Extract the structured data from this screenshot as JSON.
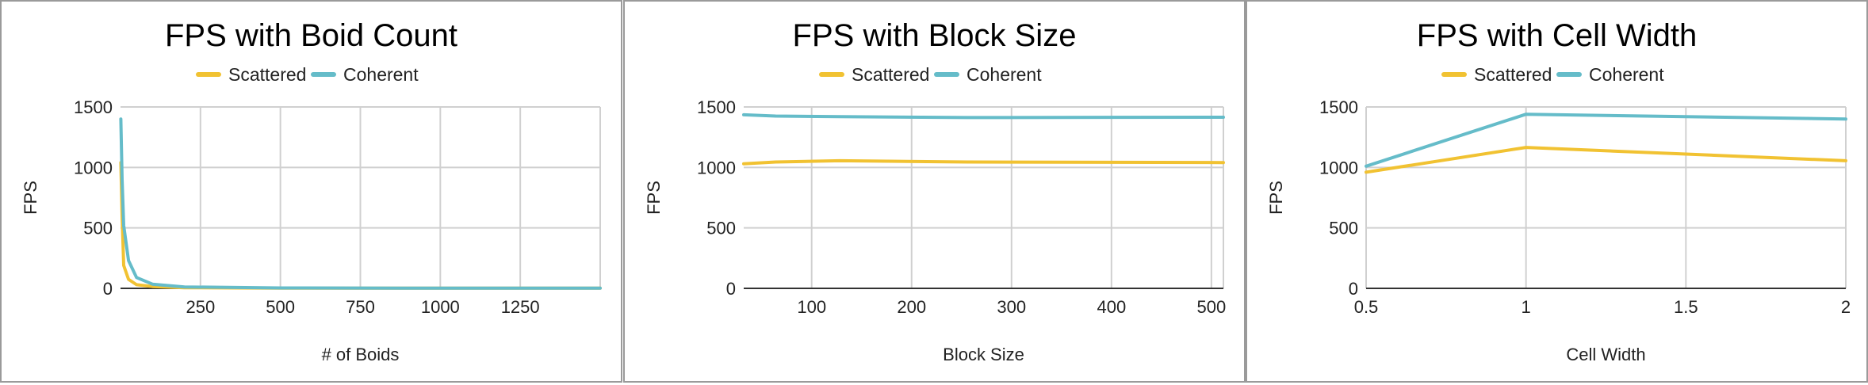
{
  "colors": {
    "scattered": "#f1c232",
    "coherent": "#65bcc9"
  },
  "chart_data": [
    {
      "type": "line",
      "title": "FPS with Boid Count",
      "xlabel": "# of Boids",
      "ylabel": "FPS",
      "xlim": [
        0,
        1500
      ],
      "ylim": [
        0,
        1500
      ],
      "xticks": [
        250,
        500,
        750,
        1000,
        1250
      ],
      "yticks": [
        0,
        500,
        1000,
        1500
      ],
      "legend": "top",
      "grid": true,
      "series": [
        {
          "name": "Scattered",
          "x": [
            1,
            5,
            10,
            25,
            50,
            100,
            200,
            500,
            1000,
            1500
          ],
          "values": [
            1040,
            600,
            190,
            75,
            30,
            15,
            5,
            2,
            1,
            1
          ]
        },
        {
          "name": "Coherent",
          "x": [
            1,
            5,
            10,
            25,
            50,
            100,
            200,
            500,
            1000,
            1500
          ],
          "values": [
            1400,
            900,
            520,
            230,
            90,
            35,
            12,
            3,
            1,
            1
          ]
        }
      ]
    },
    {
      "type": "line",
      "title": "FPS with Block Size",
      "xlabel": "Block Size",
      "ylabel": "FPS",
      "xlim": [
        32,
        512
      ],
      "ylim": [
        0,
        1500
      ],
      "xticks": [
        100,
        200,
        300,
        400,
        500
      ],
      "yticks": [
        0,
        500,
        1000,
        1500
      ],
      "legend": "top",
      "grid": true,
      "series": [
        {
          "name": "Scattered",
          "x": [
            32,
            64,
            128,
            256,
            512
          ],
          "values": [
            1030,
            1045,
            1055,
            1045,
            1040
          ]
        },
        {
          "name": "Coherent",
          "x": [
            32,
            64,
            128,
            256,
            512
          ],
          "values": [
            1435,
            1425,
            1420,
            1412,
            1415
          ]
        }
      ]
    },
    {
      "type": "line",
      "title": "FPS with Cell Width",
      "xlabel": "Cell Width",
      "ylabel": "FPS",
      "xlim": [
        0.5,
        2
      ],
      "ylim": [
        0,
        1500
      ],
      "xticks": [
        0.5,
        1,
        1.5,
        2
      ],
      "yticks": [
        0,
        500,
        1000,
        1500
      ],
      "legend": "top",
      "grid": true,
      "series": [
        {
          "name": "Scattered",
          "x": [
            0.5,
            1,
            2
          ],
          "values": [
            960,
            1165,
            1055
          ]
        },
        {
          "name": "Coherent",
          "x": [
            0.5,
            1,
            2
          ],
          "values": [
            1010,
            1440,
            1400
          ]
        }
      ]
    }
  ]
}
